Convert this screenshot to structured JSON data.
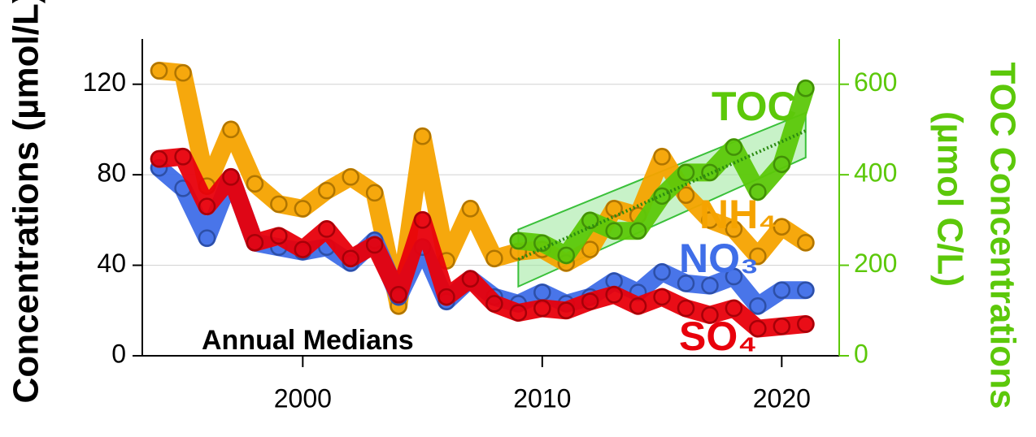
{
  "chart_data": {
    "type": "line",
    "y_label": "Concentrations (µmol/L)",
    "y2_label": [
      "TOC Concentrations",
      "(µmol C/L)"
    ],
    "annotation": "Annual Medians",
    "x": [
      1994,
      1995,
      1996,
      1997,
      1998,
      1999,
      2000,
      2001,
      2002,
      2003,
      2004,
      2005,
      2006,
      2007,
      2008,
      2009,
      2010,
      2011,
      2012,
      2013,
      2014,
      2015,
      2016,
      2017,
      2018,
      2019,
      2020,
      2021
    ],
    "series": [
      {
        "name": "NH₄",
        "color": "#f5a300",
        "values": [
          126,
          125,
          75,
          100,
          76,
          67,
          65,
          73,
          79,
          72,
          22,
          97,
          42,
          65,
          43,
          46,
          47,
          41,
          47,
          65,
          62,
          88,
          71,
          60,
          56,
          44,
          57,
          50
        ]
      },
      {
        "name": "NO₃",
        "color": "#3f6ee8",
        "values": [
          83,
          74,
          52,
          79,
          50,
          48,
          46,
          48,
          41,
          51,
          26,
          48,
          24,
          34,
          26,
          23,
          28,
          23,
          26,
          33,
          28,
          37,
          32,
          31,
          35,
          22,
          29,
          29
        ]
      },
      {
        "name": "SO₄",
        "color": "#e8000b",
        "values": [
          87,
          88,
          66,
          79,
          50,
          53,
          47,
          56,
          43,
          49,
          27,
          60,
          26,
          34,
          23,
          19,
          21,
          20,
          24,
          27,
          22,
          26,
          21,
          18,
          21,
          12,
          13,
          14
        ]
      },
      {
        "name": "TOC",
        "color": "#5cc80a",
        "axis": "y2",
        "values": [
          null,
          null,
          null,
          null,
          null,
          null,
          null,
          null,
          null,
          null,
          null,
          null,
          null,
          null,
          null,
          254,
          249,
          222,
          299,
          276,
          276,
          353,
          405,
          405,
          461,
          362,
          423,
          591
        ]
      }
    ],
    "trend": {
      "x": [
        2009,
        2021
      ],
      "values": [
        213,
        497
      ],
      "lower": [
        153,
        438
      ],
      "upper": [
        279,
        537
      ],
      "color": "#2a8a10"
    },
    "xlim": [
      1993.3,
      2022.4
    ],
    "xticks": [
      2000,
      2010,
      2020
    ],
    "ylim": [
      0,
      140
    ],
    "yticks": [
      0,
      40,
      80,
      120
    ],
    "y2lim": [
      0,
      700
    ],
    "y2ticks": [
      0,
      200,
      400,
      600
    ],
    "y2color": "#5cc80a",
    "grid": true
  }
}
